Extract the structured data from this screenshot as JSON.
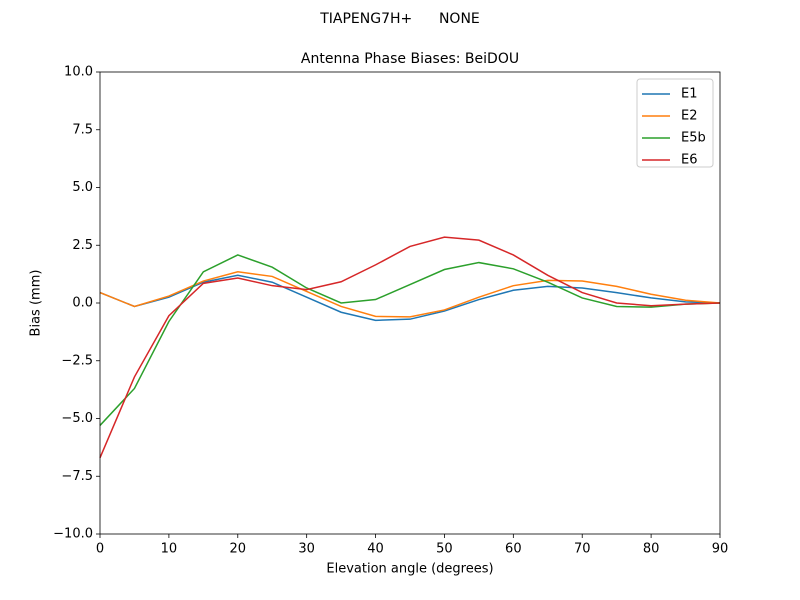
{
  "chart_data": {
    "type": "line",
    "suptitle": "TIAPENG7H+      NONE",
    "title": "Antenna Phase Biases: BeiDOU",
    "xlabel": "Elevation angle (degrees)",
    "ylabel": "Bias (mm)",
    "x": [
      0,
      5,
      10,
      15,
      20,
      25,
      30,
      35,
      40,
      45,
      50,
      55,
      60,
      65,
      70,
      75,
      80,
      85,
      90
    ],
    "series": [
      {
        "name": "E1",
        "color": "#1f77b4",
        "values": [
          0.45,
          -0.15,
          0.25,
          0.9,
          1.2,
          0.9,
          0.25,
          -0.4,
          -0.75,
          -0.7,
          -0.35,
          0.15,
          0.55,
          0.72,
          0.65,
          0.45,
          0.22,
          0.05,
          0
        ]
      },
      {
        "name": "E2",
        "color": "#ff7f0e",
        "values": [
          0.45,
          -0.15,
          0.3,
          0.95,
          1.35,
          1.15,
          0.5,
          -0.15,
          -0.58,
          -0.6,
          -0.3,
          0.25,
          0.75,
          0.98,
          0.95,
          0.72,
          0.38,
          0.12,
          0
        ]
      },
      {
        "name": "E5b",
        "color": "#2ca02c",
        "values": [
          -5.3,
          -3.7,
          -0.8,
          1.35,
          2.08,
          1.55,
          0.65,
          0.0,
          0.15,
          0.8,
          1.45,
          1.75,
          1.48,
          0.9,
          0.22,
          -0.15,
          -0.18,
          -0.05,
          0
        ]
      },
      {
        "name": "E6",
        "color": "#d62728",
        "values": [
          -6.7,
          -3.2,
          -0.55,
          0.85,
          1.08,
          0.75,
          0.58,
          0.92,
          1.65,
          2.45,
          2.85,
          2.72,
          2.08,
          1.2,
          0.45,
          0.0,
          -0.12,
          -0.05,
          0
        ]
      }
    ],
    "xlim": [
      0,
      90
    ],
    "xticks": [
      0,
      10,
      20,
      30,
      40,
      50,
      60,
      70,
      80,
      90
    ],
    "ylim": [
      -10,
      10
    ],
    "yticks": [
      {
        "value": -10,
        "label": "−10.0"
      },
      {
        "value": -7.5,
        "label": "−7.5"
      },
      {
        "value": -5,
        "label": "−5.0"
      },
      {
        "value": -2.5,
        "label": "−2.5"
      },
      {
        "value": 0,
        "label": "0.0"
      },
      {
        "value": 2.5,
        "label": "2.5"
      },
      {
        "value": 5,
        "label": "5.0"
      },
      {
        "value": 7.5,
        "label": "7.5"
      },
      {
        "value": 10,
        "label": "10.0"
      }
    ],
    "legend": "upper right",
    "grid": false
  }
}
